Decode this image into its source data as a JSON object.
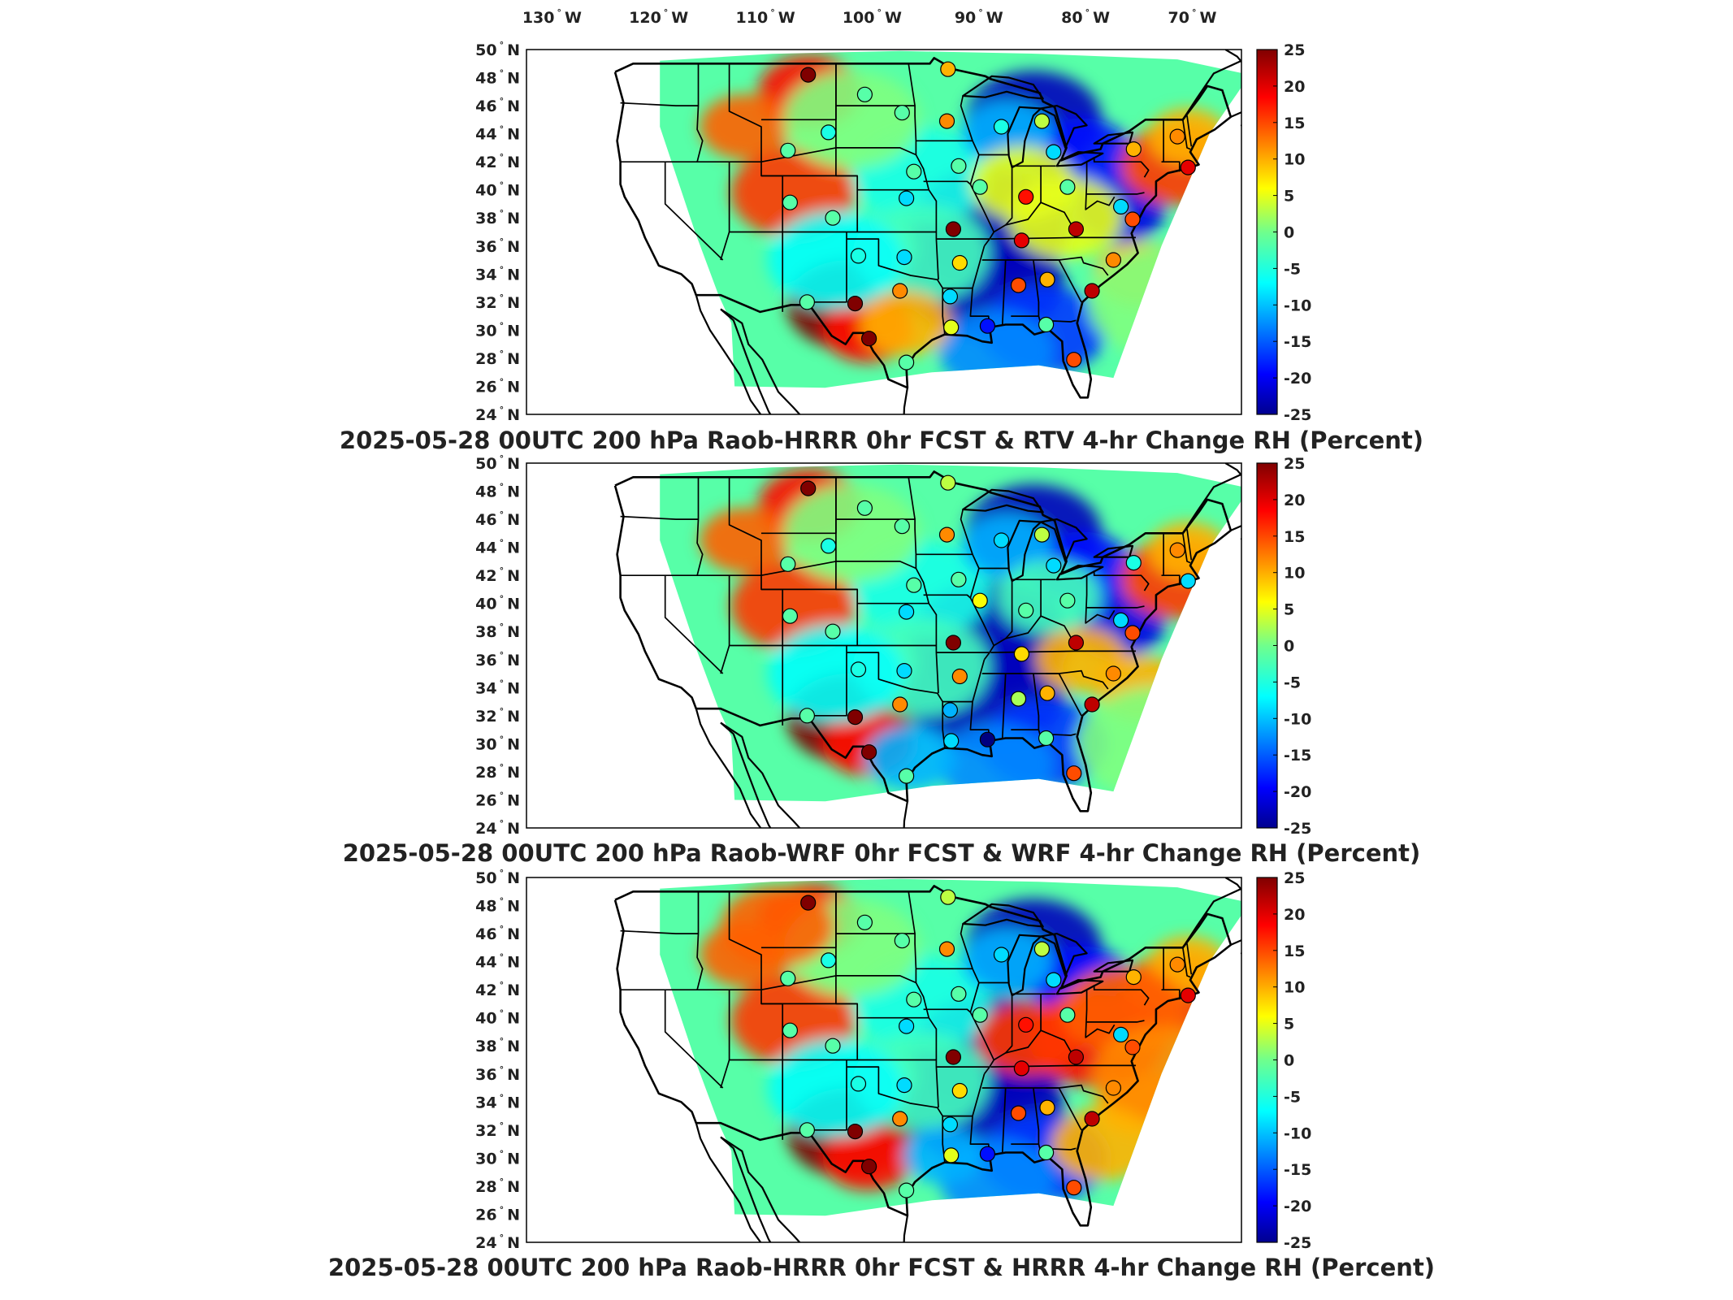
{
  "top_lon_labels": [
    {
      "value": "130",
      "hemi": "W"
    },
    {
      "value": "120",
      "hemi": "W"
    },
    {
      "value": "110",
      "hemi": "W"
    },
    {
      "value": "100",
      "hemi": "W"
    },
    {
      "value": "90",
      "hemi": "W"
    },
    {
      "value": "80",
      "hemi": "W"
    },
    {
      "value": "70",
      "hemi": "W"
    }
  ],
  "lat_labels": [
    "50",
    "48",
    "46",
    "44",
    "42",
    "40",
    "38",
    "36",
    "34",
    "32",
    "30",
    "28",
    "26",
    "24"
  ],
  "lat_hemi": "N",
  "colorbar": {
    "ticks": [
      "25",
      "20",
      "15",
      "10",
      "5",
      "0",
      "-5",
      "-10",
      "-15",
      "-20",
      "-25"
    ],
    "range": [
      -25,
      25
    ],
    "colormap": "jet"
  },
  "panels": [
    {
      "title": "2025-05-28 00UTC 200 hPa Raob-HRRR 0hr FCST & RTV 4-hr Change RH (Percent)"
    },
    {
      "title": "2025-05-28 00UTC 200 hPa Raob-WRF 0hr FCST & WRF 4-hr Change RH (Percent)"
    },
    {
      "title": "2025-05-28 00UTC 200 hPa Raob-HRRR 0hr FCST & HRRR 4-hr Change RH (Percent)"
    }
  ],
  "stations": [
    {
      "lon": -106.6,
      "lat": 48.2,
      "values": [
        25,
        25,
        25
      ]
    },
    {
      "lon": -93.5,
      "lat": 48.6,
      "values": [
        10,
        3,
        3
      ]
    },
    {
      "lon": -101.3,
      "lat": 46.8,
      "values": [
        -2,
        -2,
        -2
      ]
    },
    {
      "lon": -97.8,
      "lat": 45.5,
      "values": [
        -2,
        -2,
        -2
      ]
    },
    {
      "lon": -93.6,
      "lat": 44.9,
      "values": [
        12,
        12,
        12
      ]
    },
    {
      "lon": -88.5,
      "lat": 44.5,
      "values": [
        -5,
        -8,
        -8
      ]
    },
    {
      "lon": -84.7,
      "lat": 44.9,
      "values": [
        3,
        3,
        3
      ]
    },
    {
      "lon": -108.5,
      "lat": 42.8,
      "values": [
        -2,
        -2,
        -2
      ]
    },
    {
      "lon": -104.7,
      "lat": 44.1,
      "values": [
        -5,
        -5,
        -5
      ]
    },
    {
      "lon": -96.7,
      "lat": 41.3,
      "values": [
        -2,
        -2,
        -2
      ]
    },
    {
      "lon": -92.5,
      "lat": 41.7,
      "values": [
        -2,
        -2,
        -2
      ]
    },
    {
      "lon": -90.5,
      "lat": 40.2,
      "values": [
        -2,
        6,
        -2
      ]
    },
    {
      "lon": -86.2,
      "lat": 39.5,
      "values": [
        18,
        -2,
        18
      ]
    },
    {
      "lon": -83.6,
      "lat": 42.7,
      "values": [
        -8,
        -8,
        -8
      ]
    },
    {
      "lon": -82.3,
      "lat": 40.2,
      "values": [
        -2,
        -2,
        -2
      ]
    },
    {
      "lon": -76.1,
      "lat": 42.9,
      "values": [
        10,
        -5,
        10
      ]
    },
    {
      "lon": -72.0,
      "lat": 43.8,
      "values": [
        12,
        12,
        12
      ]
    },
    {
      "lon": -71.0,
      "lat": 41.6,
      "values": [
        20,
        -8,
        20
      ]
    },
    {
      "lon": -77.3,
      "lat": 38.8,
      "values": [
        -8,
        -8,
        -8
      ]
    },
    {
      "lon": -76.2,
      "lat": 37.9,
      "values": [
        15,
        15,
        15
      ]
    },
    {
      "lon": -81.5,
      "lat": 37.2,
      "values": [
        22,
        22,
        22
      ]
    },
    {
      "lon": -108.3,
      "lat": 39.1,
      "values": [
        -2,
        -2,
        -2
      ]
    },
    {
      "lon": -104.3,
      "lat": 38.0,
      "values": [
        -2,
        -2,
        -2
      ]
    },
    {
      "lon": -97.4,
      "lat": 39.4,
      "values": [
        -8,
        -8,
        -8
      ]
    },
    {
      "lon": -93.0,
      "lat": 37.2,
      "values": [
        25,
        25,
        25
      ]
    },
    {
      "lon": -86.6,
      "lat": 36.4,
      "values": [
        20,
        8,
        20
      ]
    },
    {
      "lon": -92.4,
      "lat": 34.8,
      "values": [
        8,
        12,
        8
      ]
    },
    {
      "lon": -101.9,
      "lat": 35.3,
      "values": [
        -5,
        -5,
        -5
      ]
    },
    {
      "lon": -97.6,
      "lat": 35.2,
      "values": [
        -8,
        -8,
        -8
      ]
    },
    {
      "lon": -98.0,
      "lat": 32.8,
      "values": [
        12,
        12,
        12
      ]
    },
    {
      "lon": -93.3,
      "lat": 32.4,
      "values": [
        -8,
        -10,
        -8
      ]
    },
    {
      "lon": -86.9,
      "lat": 33.2,
      "values": [
        15,
        2,
        15
      ]
    },
    {
      "lon": -84.2,
      "lat": 33.6,
      "values": [
        10,
        10,
        10
      ]
    },
    {
      "lon": -80.0,
      "lat": 32.8,
      "values": [
        22,
        22,
        22
      ]
    },
    {
      "lon": -78.0,
      "lat": 35.0,
      "values": [
        12,
        12,
        12
      ]
    },
    {
      "lon": -106.7,
      "lat": 32.0,
      "values": [
        -2,
        -2,
        -2
      ]
    },
    {
      "lon": -102.2,
      "lat": 31.9,
      "values": [
        25,
        25,
        25
      ]
    },
    {
      "lon": -100.9,
      "lat": 29.4,
      "values": [
        25,
        25,
        25
      ]
    },
    {
      "lon": -97.4,
      "lat": 27.7,
      "values": [
        -2,
        -2,
        -2
      ]
    },
    {
      "lon": -93.2,
      "lat": 30.2,
      "values": [
        5,
        -8,
        5
      ]
    },
    {
      "lon": -89.8,
      "lat": 30.3,
      "values": [
        -18,
        -25,
        -18
      ]
    },
    {
      "lon": -84.3,
      "lat": 30.4,
      "values": [
        -2,
        -2,
        -2
      ]
    },
    {
      "lon": -81.7,
      "lat": 27.9,
      "values": [
        15,
        15,
        15
      ]
    }
  ]
}
